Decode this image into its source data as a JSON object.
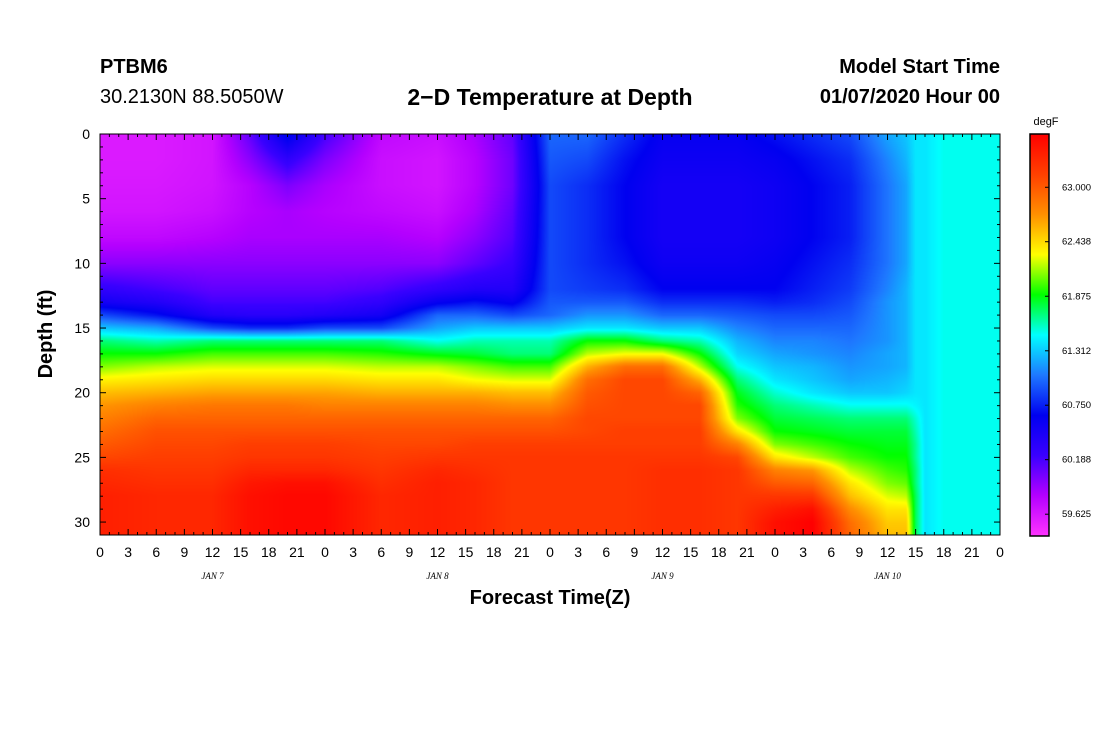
{
  "header": {
    "station": "PTBM6",
    "coordinates": "30.2130N 88.5050W",
    "title": "2−D Temperature at Depth",
    "start_label": "Model Start Time",
    "start_value": "01/07/2020 Hour 00"
  },
  "chart_data": {
    "type": "heatmap",
    "xlabel": "Forecast Time(Z)",
    "ylabel": "Depth (ft)",
    "x_unit": "forecast hours since 01/07/2020 00Z",
    "xlim": [
      0,
      96
    ],
    "ylim": [
      0,
      31
    ],
    "y_inverted": true,
    "x_ticks": [
      0,
      3,
      6,
      9,
      12,
      15,
      18,
      21,
      24,
      27,
      30,
      33,
      36,
      39,
      42,
      45,
      48,
      51,
      54,
      57,
      60,
      63,
      66,
      69,
      72,
      75,
      78,
      81,
      84,
      87,
      90,
      93,
      96
    ],
    "x_tick_labels": [
      "0",
      "3",
      "6",
      "9",
      "12",
      "15",
      "18",
      "21",
      "0",
      "3",
      "6",
      "9",
      "12",
      "15",
      "18",
      "21",
      "0",
      "3",
      "6",
      "9",
      "12",
      "15",
      "18",
      "21",
      "0",
      "3",
      "6",
      "9",
      "12",
      "15",
      "18",
      "21",
      "0"
    ],
    "y_ticks": [
      0,
      5,
      10,
      15,
      20,
      25,
      30
    ],
    "y_tick_labels": [
      "0",
      "5",
      "10",
      "15",
      "20",
      "25",
      "30"
    ],
    "date_labels": [
      {
        "x": 12,
        "label": "JAN 7"
      },
      {
        "x": 36,
        "label": "JAN 8"
      },
      {
        "x": 60,
        "label": "JAN 9"
      },
      {
        "x": 84,
        "label": "JAN 10"
      }
    ],
    "colorbar": {
      "unit": "degF",
      "ticks": [
        63.0,
        62.438,
        61.875,
        61.312,
        60.75,
        60.188,
        59.625
      ],
      "tick_labels": [
        "63.000",
        "62.438",
        "61.875",
        "61.312",
        "60.750",
        "60.188",
        "59.625"
      ],
      "range": [
        59.4,
        63.55
      ],
      "colors": [
        "#ff33ff",
        "#b400ff",
        "#3a00ff",
        "#0000f0",
        "#1e78ff",
        "#00ffff",
        "#00ff00",
        "#ffff00",
        "#ff9000",
        "#ff4000",
        "#ff0000"
      ]
    },
    "field": {
      "x": [
        0,
        6,
        12,
        16,
        20,
        24,
        30,
        36,
        40,
        44,
        48,
        52,
        56,
        60,
        64,
        68,
        72,
        76,
        80,
        84,
        86,
        87,
        88,
        90,
        96
      ],
      "depths": [
        0,
        2,
        4,
        6,
        8,
        10,
        12,
        13,
        14,
        15,
        16,
        17,
        18,
        19,
        20,
        21,
        22,
        23,
        24,
        25,
        26,
        27,
        28,
        29,
        30,
        31
      ],
      "profiles": [
        [
          59.6,
          59.6,
          59.62,
          59.65,
          59.75,
          59.95,
          60.3,
          60.5,
          60.9,
          61.3,
          61.7,
          61.9,
          62.1,
          62.35,
          62.55,
          62.7,
          62.8,
          62.9,
          63.0,
          63.1,
          63.25,
          63.3,
          63.35,
          63.35,
          63.35,
          63.35
        ],
        [
          59.6,
          59.6,
          59.62,
          59.65,
          59.75,
          59.95,
          60.2,
          60.4,
          60.7,
          61.2,
          61.6,
          61.9,
          62.2,
          62.4,
          62.6,
          62.8,
          62.95,
          63.05,
          63.1,
          63.15,
          63.2,
          63.25,
          63.3,
          63.3,
          63.3,
          63.3
        ],
        [
          59.65,
          59.65,
          59.66,
          59.7,
          59.8,
          59.95,
          60.1,
          60.2,
          60.4,
          60.9,
          61.7,
          62.0,
          62.25,
          62.45,
          62.65,
          62.85,
          62.95,
          63.05,
          63.1,
          63.15,
          63.2,
          63.25,
          63.3,
          63.3,
          63.3,
          63.3
        ],
        [
          60.1,
          59.95,
          59.8,
          59.8,
          59.85,
          59.95,
          60.1,
          60.2,
          60.35,
          60.8,
          61.7,
          62.0,
          62.25,
          62.45,
          62.65,
          62.85,
          62.95,
          63.05,
          63.15,
          63.2,
          63.3,
          63.4,
          63.45,
          63.45,
          63.45,
          63.45
        ],
        [
          60.7,
          60.3,
          60.0,
          59.85,
          59.85,
          59.95,
          60.1,
          60.2,
          60.35,
          60.8,
          61.7,
          62.0,
          62.25,
          62.45,
          62.65,
          62.85,
          62.95,
          63.05,
          63.15,
          63.2,
          63.3,
          63.45,
          63.5,
          63.5,
          63.5,
          63.5
        ],
        [
          60.2,
          60.0,
          59.85,
          59.8,
          59.85,
          59.95,
          60.1,
          60.2,
          60.4,
          60.9,
          61.7,
          62.0,
          62.25,
          62.45,
          62.65,
          62.8,
          62.95,
          63.05,
          63.15,
          63.2,
          63.3,
          63.45,
          63.5,
          63.5,
          63.5,
          63.5
        ],
        [
          59.75,
          59.7,
          59.7,
          59.75,
          59.85,
          59.95,
          60.15,
          60.3,
          60.5,
          60.9,
          61.7,
          61.95,
          62.2,
          62.4,
          62.6,
          62.8,
          62.95,
          63.05,
          63.1,
          63.15,
          63.2,
          63.25,
          63.3,
          63.3,
          63.3,
          63.3
        ],
        [
          59.7,
          59.65,
          59.65,
          59.7,
          59.8,
          59.95,
          60.3,
          60.6,
          61.0,
          61.2,
          61.5,
          61.85,
          62.2,
          62.4,
          62.6,
          62.8,
          62.95,
          63.05,
          63.1,
          63.2,
          63.3,
          63.35,
          63.35,
          63.35,
          63.35,
          63.35
        ],
        [
          59.85,
          59.8,
          59.8,
          59.85,
          59.95,
          60.1,
          60.4,
          60.7,
          61.0,
          61.3,
          61.6,
          61.8,
          62.1,
          62.3,
          62.6,
          62.8,
          62.95,
          63.05,
          63.15,
          63.2,
          63.25,
          63.3,
          63.3,
          63.3,
          63.3,
          63.3
        ],
        [
          60.1,
          60.05,
          60.05,
          60.1,
          60.15,
          60.25,
          60.4,
          60.6,
          60.9,
          61.3,
          61.6,
          61.7,
          62.0,
          62.25,
          62.55,
          62.75,
          62.95,
          63.05,
          63.15,
          63.2,
          63.2,
          63.2,
          63.2,
          63.2,
          63.2,
          63.2
        ],
        [
          61.0,
          60.95,
          60.9,
          60.9,
          60.9,
          60.9,
          60.9,
          60.95,
          61.0,
          61.3,
          61.6,
          61.7,
          62.0,
          62.25,
          62.55,
          62.75,
          62.95,
          63.05,
          63.15,
          63.2,
          63.2,
          63.2,
          63.2,
          63.2,
          63.2,
          63.2
        ],
        [
          61.0,
          60.9,
          60.8,
          60.8,
          60.8,
          60.8,
          60.85,
          60.95,
          61.15,
          61.4,
          61.9,
          62.2,
          62.6,
          62.9,
          63.0,
          63.05,
          63.1,
          63.1,
          63.15,
          63.2,
          63.2,
          63.2,
          63.2,
          63.2,
          63.2,
          63.2
        ],
        [
          60.8,
          60.7,
          60.65,
          60.65,
          60.65,
          60.7,
          60.8,
          60.95,
          61.15,
          61.4,
          61.9,
          62.3,
          62.9,
          63.1,
          63.1,
          63.1,
          63.1,
          63.15,
          63.15,
          63.2,
          63.2,
          63.2,
          63.2,
          63.2,
          63.2,
          63.2
        ],
        [
          60.6,
          60.55,
          60.5,
          60.5,
          60.5,
          60.55,
          60.65,
          60.8,
          61.0,
          61.3,
          61.7,
          62.3,
          62.9,
          63.1,
          63.1,
          63.1,
          63.1,
          63.15,
          63.15,
          63.2,
          63.25,
          63.25,
          63.25,
          63.25,
          63.25,
          63.25
        ],
        [
          60.6,
          60.55,
          60.5,
          60.5,
          60.5,
          60.55,
          60.65,
          60.8,
          61.0,
          61.3,
          61.6,
          61.9,
          62.2,
          62.6,
          62.95,
          63.1,
          63.1,
          63.15,
          63.15,
          63.2,
          63.25,
          63.25,
          63.25,
          63.25,
          63.25,
          63.25
        ],
        [
          60.6,
          60.55,
          60.5,
          60.5,
          60.5,
          60.55,
          60.65,
          60.8,
          60.95,
          61.1,
          61.25,
          61.35,
          61.5,
          61.7,
          61.85,
          61.95,
          62.1,
          62.4,
          62.8,
          63.1,
          63.2,
          63.2,
          63.2,
          63.2,
          63.2,
          63.2
        ],
        [
          60.7,
          60.6,
          60.55,
          60.55,
          60.55,
          60.6,
          60.65,
          60.75,
          60.9,
          61.0,
          61.1,
          61.2,
          61.3,
          61.4,
          61.55,
          61.7,
          61.8,
          61.9,
          62.1,
          62.4,
          62.8,
          63.0,
          63.2,
          63.35,
          63.45,
          63.45
        ],
        [
          60.8,
          60.7,
          60.65,
          60.65,
          60.65,
          60.7,
          60.75,
          60.8,
          60.9,
          61.0,
          61.1,
          61.15,
          61.25,
          61.3,
          61.4,
          61.6,
          61.75,
          61.85,
          62.0,
          62.2,
          62.7,
          62.95,
          63.2,
          63.45,
          63.55,
          63.55
        ],
        [
          60.9,
          60.8,
          60.75,
          60.75,
          60.75,
          60.8,
          60.85,
          60.9,
          60.95,
          61.0,
          61.05,
          61.1,
          61.15,
          61.2,
          61.3,
          61.5,
          61.7,
          61.8,
          61.9,
          62.0,
          62.2,
          62.4,
          62.55,
          62.75,
          62.9,
          62.95
        ],
        [
          61.2,
          61.1,
          61.05,
          61.05,
          61.05,
          61.05,
          61.1,
          61.15,
          61.15,
          61.15,
          61.15,
          61.2,
          61.2,
          61.25,
          61.3,
          61.5,
          61.7,
          61.8,
          61.85,
          61.9,
          62.0,
          62.1,
          62.25,
          62.4,
          62.5,
          62.55
        ],
        [
          61.3,
          61.25,
          61.2,
          61.2,
          61.2,
          61.2,
          61.25,
          61.25,
          61.25,
          61.25,
          61.25,
          61.25,
          61.25,
          61.3,
          61.35,
          61.5,
          61.7,
          61.8,
          61.85,
          61.9,
          61.95,
          62.05,
          62.2,
          62.4,
          62.5,
          62.55
        ],
        [
          61.4,
          61.4,
          61.4,
          61.4,
          61.4,
          61.4,
          61.4,
          61.4,
          61.4,
          61.4,
          61.4,
          61.4,
          61.4,
          61.4,
          61.4,
          61.45,
          61.55,
          61.6,
          61.65,
          61.65,
          61.7,
          61.7,
          61.75,
          61.75,
          61.75,
          61.75
        ],
        [
          61.4,
          61.4,
          61.4,
          61.4,
          61.4,
          61.4,
          61.4,
          61.4,
          61.4,
          61.4,
          61.4,
          61.4,
          61.4,
          61.4,
          61.4,
          61.4,
          61.4,
          61.4,
          61.4,
          61.4,
          61.4,
          61.4,
          61.4,
          61.4,
          61.4,
          61.4
        ],
        [
          61.5,
          61.5,
          61.5,
          61.5,
          61.5,
          61.5,
          61.5,
          61.5,
          61.5,
          61.5,
          61.5,
          61.5,
          61.5,
          61.5,
          61.5,
          61.5,
          61.5,
          61.5,
          61.5,
          61.5,
          61.5,
          61.5,
          61.5,
          61.5,
          61.5,
          61.5
        ],
        [
          61.5,
          61.5,
          61.5,
          61.5,
          61.5,
          61.5,
          61.5,
          61.5,
          61.5,
          61.5,
          61.5,
          61.5,
          61.5,
          61.5,
          61.5,
          61.5,
          61.5,
          61.5,
          61.5,
          61.5,
          61.5,
          61.5,
          61.5,
          61.5,
          61.5,
          61.5
        ]
      ]
    }
  }
}
